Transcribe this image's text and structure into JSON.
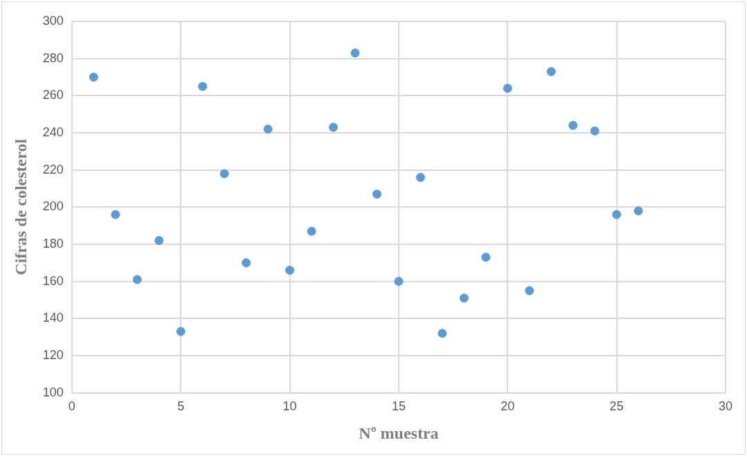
{
  "chart_data": {
    "type": "scatter",
    "xlabel": "Nº muestra",
    "ylabel": "Cifras de colesterol",
    "x": [
      1,
      2,
      3,
      4,
      5,
      6,
      7,
      8,
      9,
      10,
      11,
      12,
      13,
      14,
      15,
      16,
      17,
      18,
      19,
      20,
      21,
      22,
      23,
      24,
      25,
      26
    ],
    "values": [
      270,
      196,
      161,
      182,
      133,
      265,
      218,
      170,
      242,
      166,
      187,
      243,
      283,
      207,
      160,
      216,
      132,
      151,
      173,
      264,
      155,
      273,
      244,
      241,
      196,
      198
    ],
    "color": "#5b9bd5",
    "marker": "circle",
    "xlim": [
      0,
      30
    ],
    "xticks": [
      0,
      5,
      10,
      15,
      20,
      25,
      30
    ],
    "ylim": [
      100,
      300
    ],
    "yticks": [
      100,
      120,
      140,
      160,
      180,
      200,
      220,
      240,
      260,
      280,
      300
    ],
    "grid": true,
    "legend": false
  }
}
